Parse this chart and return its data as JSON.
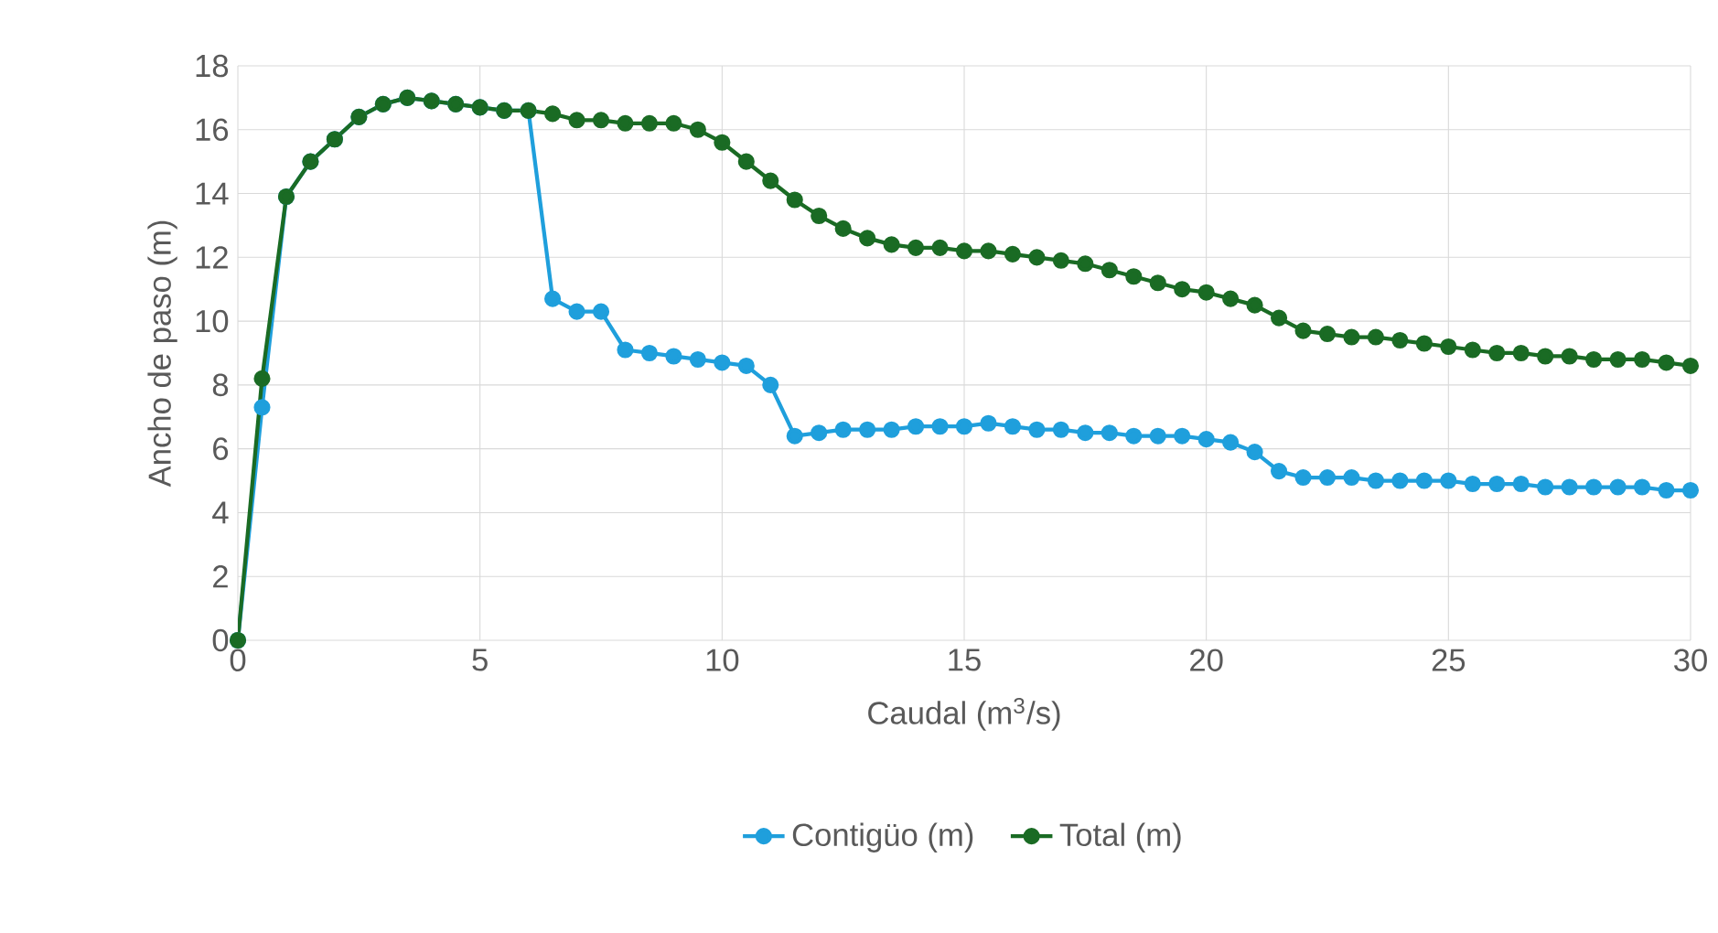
{
  "chart_data": {
    "type": "line",
    "xlabel": "Caudal (m$^{3}$/s)",
    "ylabel": "Ancho de paso (m)",
    "x": [
      0,
      0.5,
      1,
      1.5,
      2,
      2.5,
      3,
      3.5,
      4,
      4.5,
      5,
      5.5,
      6,
      6.5,
      7,
      7.5,
      8,
      8.5,
      9,
      9.5,
      10,
      10.5,
      11,
      11.5,
      12,
      12.5,
      13,
      13.5,
      14,
      14.5,
      15,
      15.5,
      16,
      16.5,
      17,
      17.5,
      18,
      18.5,
      19,
      19.5,
      20,
      20.5,
      21,
      21.5,
      22,
      22.5,
      23,
      23.5,
      24,
      24.5,
      25,
      25.5,
      26,
      26.5,
      27,
      27.5,
      28,
      28.5,
      29,
      29.5,
      30
    ],
    "series": [
      {
        "name": "Contigüo (m)",
        "color": "#1f9fdc",
        "values": [
          0,
          7.3,
          13.9,
          15.0,
          15.7,
          16.4,
          16.8,
          17.0,
          16.9,
          16.8,
          16.7,
          16.6,
          16.6,
          10.7,
          10.3,
          10.3,
          9.1,
          9.0,
          8.9,
          8.8,
          8.7,
          8.6,
          8.0,
          6.4,
          6.5,
          6.6,
          6.6,
          6.6,
          6.7,
          6.7,
          6.7,
          6.8,
          6.7,
          6.6,
          6.6,
          6.5,
          6.5,
          6.4,
          6.4,
          6.4,
          6.3,
          6.2,
          5.9,
          5.3,
          5.1,
          5.1,
          5.1,
          5.0,
          5.0,
          5.0,
          5.0,
          4.9,
          4.9,
          4.9,
          4.8,
          4.8,
          4.8,
          4.8,
          4.8,
          4.7,
          4.7
        ]
      },
      {
        "name": "Total (m)",
        "color": "#1a6b24",
        "values": [
          0,
          8.2,
          13.9,
          15.0,
          15.7,
          16.4,
          16.8,
          17.0,
          16.9,
          16.8,
          16.7,
          16.6,
          16.6,
          16.5,
          16.3,
          16.3,
          16.2,
          16.2,
          16.2,
          16.0,
          15.6,
          15.0,
          14.4,
          13.8,
          13.3,
          12.9,
          12.6,
          12.4,
          12.3,
          12.3,
          12.2,
          12.2,
          12.1,
          12.0,
          11.9,
          11.8,
          11.6,
          11.4,
          11.2,
          11.0,
          10.9,
          10.7,
          10.5,
          10.1,
          9.7,
          9.6,
          9.5,
          9.5,
          9.4,
          9.3,
          9.2,
          9.1,
          9.0,
          9.0,
          8.9,
          8.9,
          8.8,
          8.8,
          8.8,
          8.7,
          8.6
        ]
      }
    ],
    "xlim": [
      0,
      30
    ],
    "xticks": [
      0,
      5,
      10,
      15,
      20,
      25,
      30
    ],
    "ylim": [
      0,
      18
    ],
    "yticks": [
      0,
      2,
      4,
      6,
      8,
      10,
      12,
      14,
      16,
      18
    ],
    "grid": true,
    "legend": "bottom",
    "marker": "circle",
    "line_style": "solid"
  }
}
